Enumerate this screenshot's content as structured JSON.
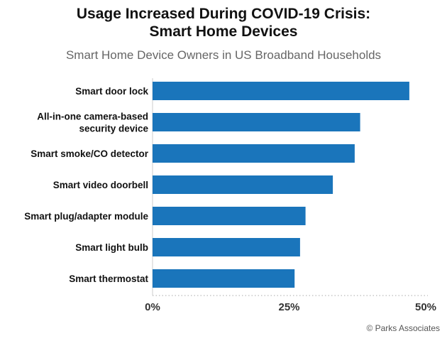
{
  "chart_data": {
    "type": "bar",
    "orientation": "horizontal",
    "title_line1": "Usage Increased During COVID-19 Crisis:",
    "title_line2": "Smart Home Devices",
    "subtitle": "Smart Home Device Owners in US Broadband Households",
    "categories": [
      [
        "Smart door lock"
      ],
      [
        "All-in-one camera-based",
        "security device"
      ],
      [
        "Smart smoke/CO detector"
      ],
      [
        "Smart video doorbell"
      ],
      [
        "Smart plug/adapter module"
      ],
      [
        "Smart light bulb"
      ],
      [
        "Smart thermostat"
      ]
    ],
    "values": [
      47,
      38,
      37,
      33,
      28,
      27,
      26
    ],
    "unit": "%",
    "xlim": [
      0,
      50
    ],
    "xticks": [
      "0%",
      "25%",
      "50%"
    ],
    "xtick_values": [
      0,
      25,
      50
    ],
    "bar_color": "#1a75bb",
    "grid": false,
    "credit": "© Parks Associates"
  }
}
